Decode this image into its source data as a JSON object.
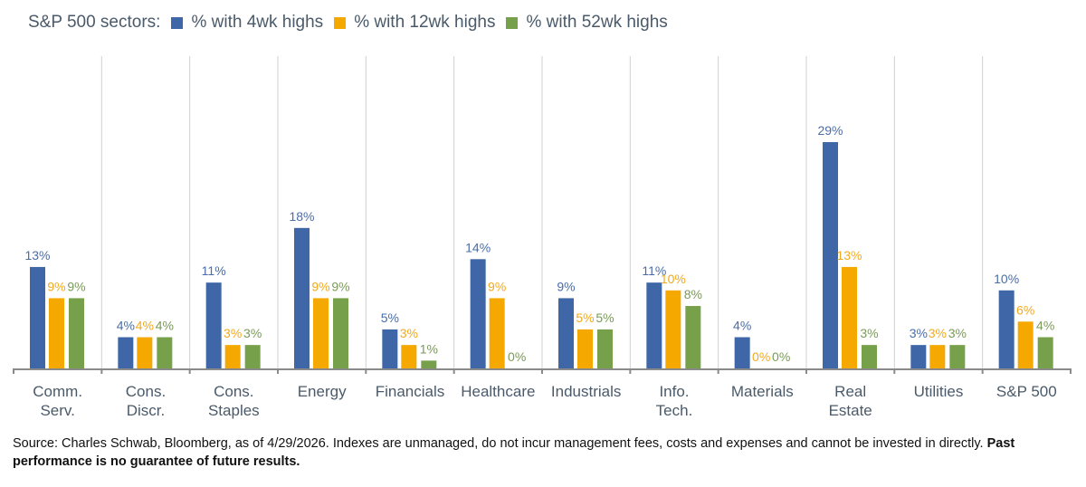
{
  "chart_data": {
    "type": "bar",
    "legend_title": "S&P 500 sectors:",
    "legend_placement": "top-left",
    "categories": [
      [
        "Comm.",
        "Serv."
      ],
      [
        "Cons.",
        "Discr."
      ],
      [
        "Cons.",
        "Staples"
      ],
      [
        "Energy"
      ],
      [
        "Financials"
      ],
      [
        "Healthcare"
      ],
      [
        "Industrials"
      ],
      [
        "Info.",
        "Tech."
      ],
      [
        "Materials"
      ],
      [
        "Real",
        "Estate"
      ],
      [
        "Utilities"
      ],
      [
        "S&P 500"
      ]
    ],
    "series": [
      {
        "name": "% with 4wk highs",
        "color": "#3F67A8",
        "label_color": "#4A6DA8",
        "values": [
          13,
          4,
          11,
          18,
          5,
          14,
          9,
          11,
          4,
          29,
          3,
          10
        ]
      },
      {
        "name": "% with 12wk highs",
        "color": "#F5A800",
        "label_color": "#F2A91E",
        "values": [
          9,
          4,
          3,
          9,
          3,
          9,
          5,
          10,
          0,
          13,
          3,
          6
        ]
      },
      {
        "name": "% with 52wk highs",
        "color": "#77A04A",
        "label_color": "#7A9A58",
        "values": [
          9,
          4,
          3,
          9,
          1,
          0,
          5,
          8,
          0,
          3,
          3,
          4
        ]
      }
    ],
    "value_format": "{v}%",
    "ylim": [
      0,
      30
    ],
    "grid": false,
    "category_separators": true
  },
  "footer": {
    "source": "Source: Charles Schwab, Bloomberg, as of 4/29/2026.  Indexes are unmanaged, do not incur management fees, costs and expenses and cannot be invested in directly.",
    "disclaimer": "Past performance is no guarantee of future results."
  }
}
